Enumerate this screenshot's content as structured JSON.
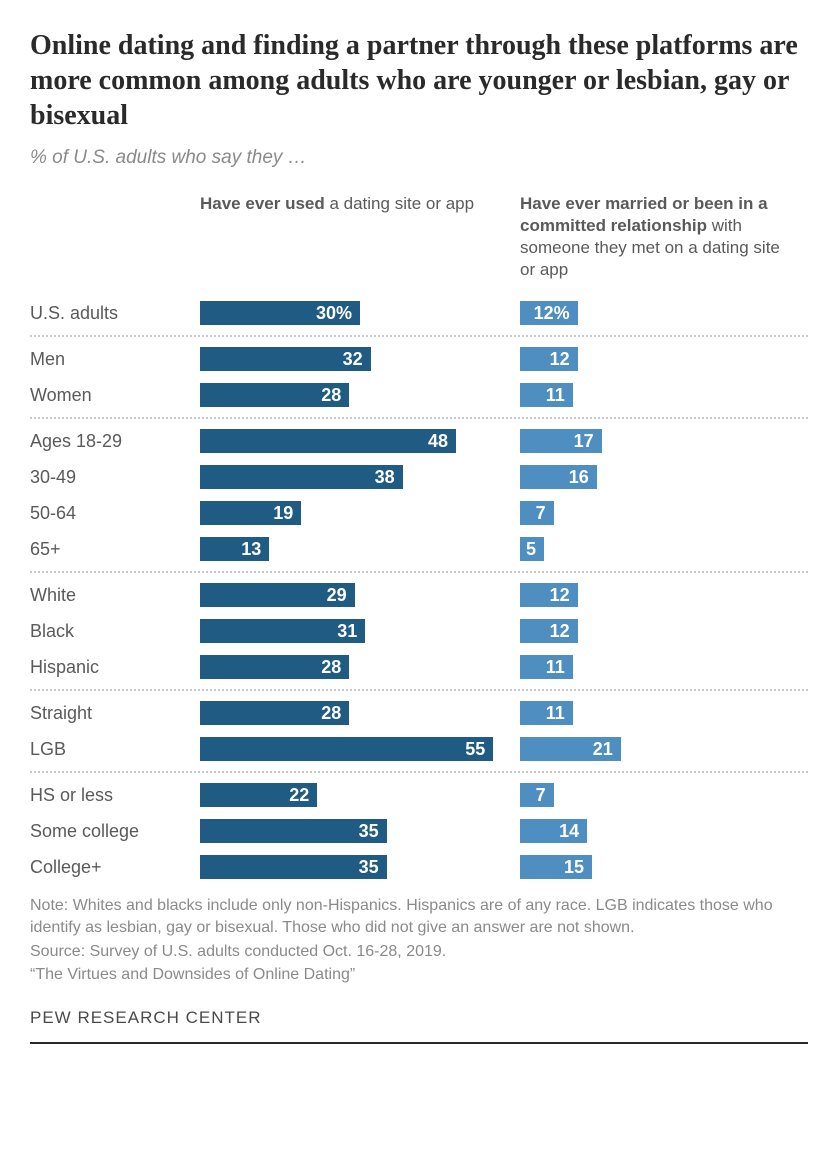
{
  "title": "Online dating and finding a partner through these platforms are more common among adults who are younger or lesbian, gay or bisexual",
  "subtitle": "% of U.S. adults who say they …",
  "columns": {
    "col1": {
      "bold": "Have ever used",
      "rest": " a dating site or app"
    },
    "col2": {
      "bold": "Have ever married or been in a committed relationship",
      "rest": " with someone they met on a dating site or app"
    }
  },
  "colors": {
    "bar1": "#1f5b83",
    "bar2": "#4f8ec1",
    "text": "#5a5a5a",
    "background": "#ffffff"
  },
  "scale": {
    "col1_max": 60,
    "col2_max": 60
  },
  "groups": [
    {
      "rows": [
        {
          "label": "U.S. adults",
          "v1": 30,
          "d1": "30%",
          "v2": 12,
          "d2": "12%"
        }
      ]
    },
    {
      "rows": [
        {
          "label": "Men",
          "v1": 32,
          "d1": "32",
          "v2": 12,
          "d2": "12"
        },
        {
          "label": "Women",
          "v1": 28,
          "d1": "28",
          "v2": 11,
          "d2": "11"
        }
      ]
    },
    {
      "rows": [
        {
          "label": "Ages 18-29",
          "v1": 48,
          "d1": "48",
          "v2": 17,
          "d2": "17"
        },
        {
          "label": "30-49",
          "v1": 38,
          "d1": "38",
          "v2": 16,
          "d2": "16"
        },
        {
          "label": "50-64",
          "v1": 19,
          "d1": "19",
          "v2": 7,
          "d2": "7"
        },
        {
          "label": "65+",
          "v1": 13,
          "d1": "13",
          "v2": 5,
          "d2": "5"
        }
      ]
    },
    {
      "rows": [
        {
          "label": "White",
          "v1": 29,
          "d1": "29",
          "v2": 12,
          "d2": "12"
        },
        {
          "label": "Black",
          "v1": 31,
          "d1": "31",
          "v2": 12,
          "d2": "12"
        },
        {
          "label": "Hispanic",
          "v1": 28,
          "d1": "28",
          "v2": 11,
          "d2": "11"
        }
      ]
    },
    {
      "rows": [
        {
          "label": "Straight",
          "v1": 28,
          "d1": "28",
          "v2": 11,
          "d2": "11"
        },
        {
          "label": "LGB",
          "v1": 55,
          "d1": "55",
          "v2": 21,
          "d2": "21"
        }
      ]
    },
    {
      "rows": [
        {
          "label": "HS or less",
          "v1": 22,
          "d1": "22",
          "v2": 7,
          "d2": "7"
        },
        {
          "label": "Some college",
          "v1": 35,
          "d1": "35",
          "v2": 14,
          "d2": "14"
        },
        {
          "label": "College+",
          "v1": 35,
          "d1": "35",
          "v2": 15,
          "d2": "15"
        }
      ]
    }
  ],
  "note": "Note: Whites and blacks include only non-Hispanics. Hispanics are of any race. LGB indicates those who identify as lesbian, gay or bisexual. Those who did not give an answer are not shown.",
  "source_text": "Source: Survey of U.S. adults conducted Oct. 16-28, 2019.",
  "report": "“The Virtues and Downsides of Online Dating”",
  "logo": "PEW RESEARCH CENTER"
}
